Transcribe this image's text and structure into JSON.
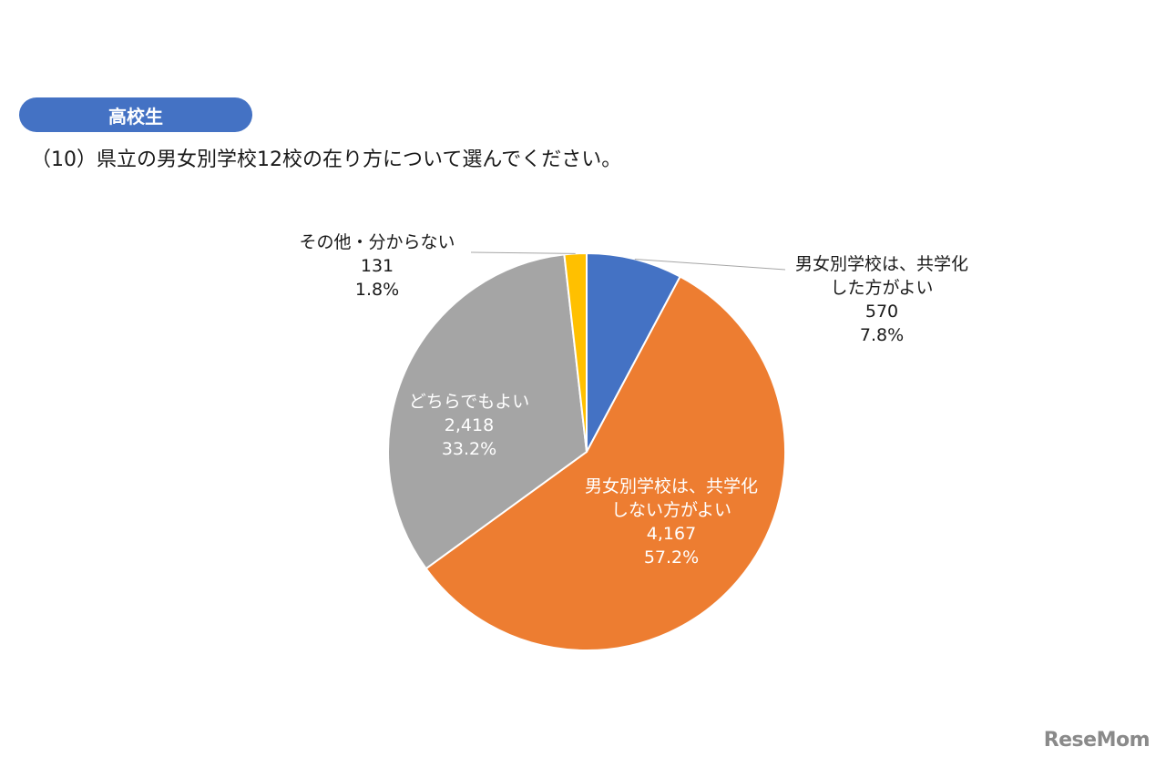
{
  "badge": "高校生",
  "question": "（10）県立の男女別学校12校の在り方について選んでください。",
  "watermark": "ReseMom",
  "chart_data": {
    "type": "pie",
    "slices": [
      {
        "lines": [
          "男女別学校は、共学化",
          "した方がよい"
        ],
        "count": "570",
        "percent": "7.8%",
        "value": 7.8,
        "color": "#4472c4"
      },
      {
        "lines": [
          "男女別学校は、共学化",
          "しない方がよい"
        ],
        "count": "4,167",
        "percent": "57.2%",
        "value": 57.2,
        "color": "#ed7d31"
      },
      {
        "lines": [
          "どちらでもよい"
        ],
        "count": "2,418",
        "percent": "33.2%",
        "value": 33.2,
        "color": "#a5a5a5"
      },
      {
        "lines": [
          "その他・分からない"
        ],
        "count": "131",
        "percent": "1.8%",
        "value": 1.8,
        "color": "#ffc000"
      }
    ],
    "start": "12 o'clock",
    "direction": "clockwise",
    "legend": "none"
  }
}
